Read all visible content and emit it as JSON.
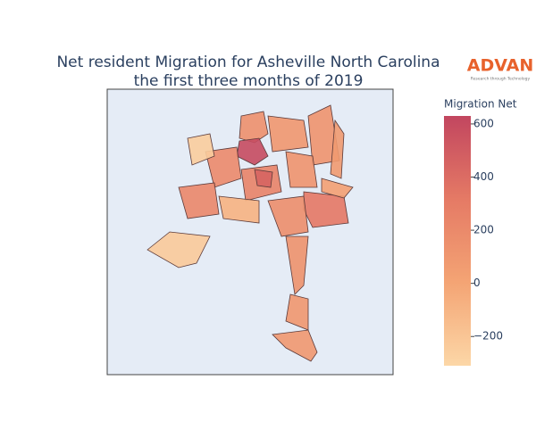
{
  "chart_data": {
    "type": "choropleth",
    "title": [
      "Net resident Migration for Asheville North Carolina",
      "the first three months of 2019"
    ],
    "logo": "ADVAN",
    "logo_tagline": "Research through Technology",
    "colorbar_title": "Migration Net",
    "zlim": [
      -310,
      630
    ],
    "zticks": [
      {
        "value": -200,
        "label": "−200"
      },
      0,
      200,
      400,
      600
    ],
    "colorscale": [
      "#fcd7a7",
      "#f4a474",
      "#e57a65",
      "#c2465f"
    ],
    "values": [
      150,
      600,
      100,
      120,
      80,
      200,
      -250,
      250,
      450,
      330,
      30,
      220,
      -230,
      -80,
      170,
      140,
      100,
      90,
      130
    ]
  }
}
